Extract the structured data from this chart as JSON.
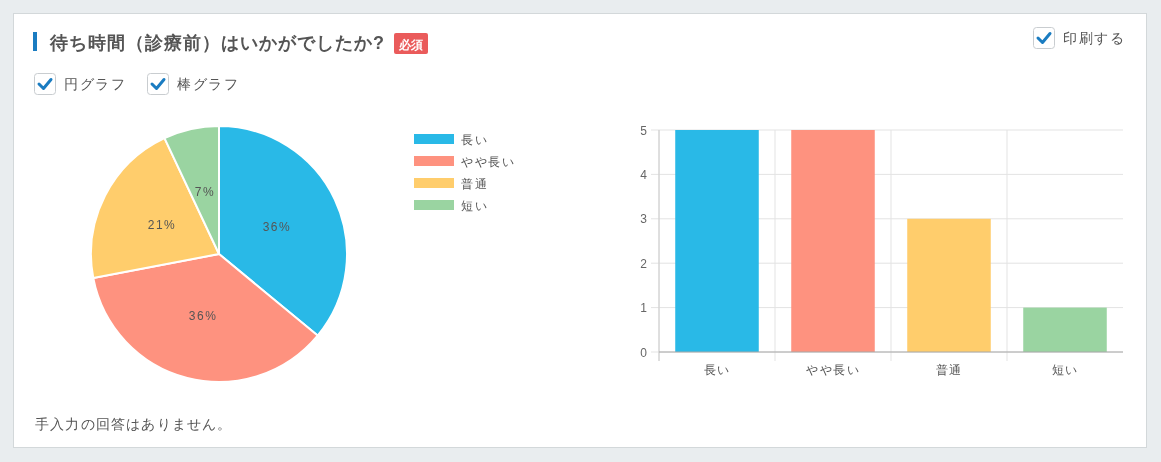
{
  "chart_data": [
    {
      "type": "pie",
      "title": "待ち時間（診療前）はいかがでしたか?",
      "categories": [
        "長い",
        "やや長い",
        "普通",
        "短い"
      ],
      "values": [
        36,
        36,
        21,
        7
      ],
      "colors": [
        "#29b9e7",
        "#fe927f",
        "#ffcd6c",
        "#9ad4a1"
      ],
      "value_labels": [
        "36%",
        "36%",
        "21%",
        "7%"
      ],
      "legend": "top right",
      "annotations": [
        "必須",
        "印刷する",
        "円グラフ",
        "棒グラフ",
        "手入力の回答はありません。"
      ]
    },
    {
      "type": "bar",
      "categories": [
        "長い",
        "やや長い",
        "普通",
        "短い"
      ],
      "values": [
        5,
        5,
        3,
        1
      ],
      "colors": [
        "#29b9e7",
        "#fe927f",
        "#ffcd6c",
        "#9ad4a1"
      ],
      "ylim": [
        0,
        5
      ],
      "yticks": [
        0,
        1,
        2,
        3,
        4,
        5
      ],
      "grid": true
    }
  ]
}
